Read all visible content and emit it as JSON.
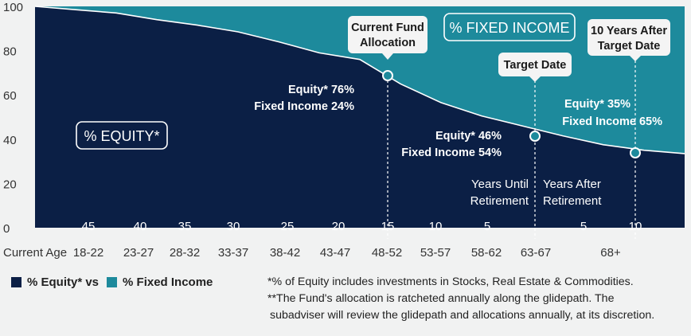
{
  "chart_data": {
    "type": "area",
    "y_ticks": [
      0,
      20,
      40,
      60,
      80,
      100
    ],
    "ylim": [
      0,
      100
    ],
    "x_axis_label": "Current Age",
    "age_categories": [
      "18-22",
      "23-27",
      "28-32",
      "33-37",
      "38-42",
      "43-47",
      "48-52",
      "53-57",
      "58-62",
      "63-67",
      "68+"
    ],
    "years_labels": [
      "45",
      "40",
      "35",
      "30",
      "25",
      "20",
      "15",
      "10",
      "5",
      "5",
      "10"
    ],
    "series": [
      {
        "name": "% Equity*",
        "color": "#0b1f45"
      },
      {
        "name": "% Fixed Income",
        "color": "#1d8a9c"
      }
    ],
    "equity_curve": [
      {
        "x": 0,
        "y": 100
      },
      {
        "x": 1,
        "y": 98.5
      },
      {
        "x": 2,
        "y": 97
      },
      {
        "x": 3,
        "y": 94
      },
      {
        "x": 4,
        "y": 91.5
      },
      {
        "x": 5,
        "y": 88.5
      },
      {
        "x": 6,
        "y": 84
      },
      {
        "x": 7,
        "y": 79
      },
      {
        "x": 8,
        "y": 76
      },
      {
        "x": 9,
        "y": 65
      },
      {
        "x": 10,
        "y": 56.5
      },
      {
        "x": 11,
        "y": 50.5
      },
      {
        "x": 12,
        "y": 46
      },
      {
        "x": 13,
        "y": 41.5
      },
      {
        "x": 14,
        "y": 37.5
      },
      {
        "x": 15,
        "y": 35
      },
      {
        "x": 16,
        "y": 33.5
      }
    ],
    "markers": [
      {
        "label": "Current Fund Allocation",
        "x": 8,
        "equity": 76,
        "fixed_income": 24
      },
      {
        "label": "Target Date",
        "x": 12,
        "equity": 46,
        "fixed_income": 54
      },
      {
        "label": "10 Years After Target Date",
        "x": 15,
        "equity": 35,
        "fixed_income": 65
      }
    ],
    "region_labels": {
      "equity": "% EQUITY*",
      "fixed_income": "% FIXED INCOME",
      "before": "Years Until Retirement",
      "after": "Years After Retirement"
    },
    "annotations": {
      "current_equity": "Equity* 76%",
      "current_fi": "Fixed Income 24%",
      "target_equity": "Equity* 46%",
      "target_fi": "Fixed Income 54%",
      "after_equity": "Equity* 35%",
      "after_fi": "Fixed Income 65%",
      "callout_current_1": "Current Fund",
      "callout_current_2": "Allocation",
      "callout_target": "Target Date",
      "callout_after_1": "10 Years After",
      "callout_after_2": "Target Date",
      "years_until_1": "Years Until",
      "years_until_2": "Retirement",
      "years_after_1": "Years After",
      "years_after_2": "Retirement"
    }
  },
  "legend": {
    "equity_label": "% Equity* vs",
    "fi_label": "% Fixed Income"
  },
  "footnotes": {
    "line1": "*% of Equity includes investments in Stocks, Real Estate & Commodities.",
    "line2": "**The Fund's allocation is ratcheted annually along the glidepath. The",
    "line3": "subadviser will review the glidepath and allocations annually, at its discretion."
  }
}
